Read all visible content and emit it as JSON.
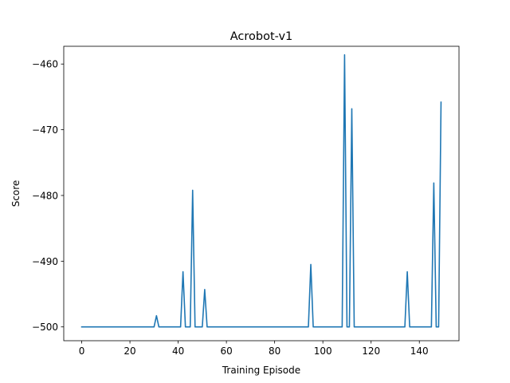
{
  "chart_data": {
    "type": "line",
    "title": "Acrobot-v1",
    "xlabel": "Training Episode",
    "ylabel": "Score",
    "xlim": [
      -7.45,
      156.45
    ],
    "ylim": [
      -502.1,
      -457.3
    ],
    "xticks": [
      0,
      20,
      40,
      60,
      80,
      100,
      120,
      140
    ],
    "yticks": [
      -500,
      -490,
      -480,
      -470,
      -460
    ],
    "xtick_labels": [
      "0",
      "20",
      "40",
      "60",
      "80",
      "100",
      "120",
      "140"
    ],
    "ytick_labels": [
      "−500",
      "−490",
      "−480",
      "−470",
      "−460"
    ],
    "grid": false,
    "series": [
      {
        "color": "#1f77b4",
        "points": [
          [
            0,
            -500
          ],
          [
            30,
            -500
          ],
          [
            31,
            -498.3
          ],
          [
            32,
            -500
          ],
          [
            41,
            -500
          ],
          [
            42,
            -491.6
          ],
          [
            43,
            -500
          ],
          [
            45,
            -500
          ],
          [
            46,
            -479.2
          ],
          [
            47,
            -500
          ],
          [
            50,
            -500
          ],
          [
            51,
            -494.3
          ],
          [
            52,
            -500
          ],
          [
            94,
            -500
          ],
          [
            95,
            -490.5
          ],
          [
            96,
            -500
          ],
          [
            108,
            -500
          ],
          [
            109,
            -458.6
          ],
          [
            110,
            -500
          ],
          [
            111,
            -500
          ],
          [
            112,
            -466.8
          ],
          [
            113,
            -500
          ],
          [
            134,
            -500
          ],
          [
            135,
            -491.6
          ],
          [
            136,
            -500
          ],
          [
            145,
            -500
          ],
          [
            146,
            -478.1
          ],
          [
            147,
            -500
          ],
          [
            148,
            -500
          ],
          [
            149,
            -465.8
          ]
        ]
      }
    ]
  }
}
